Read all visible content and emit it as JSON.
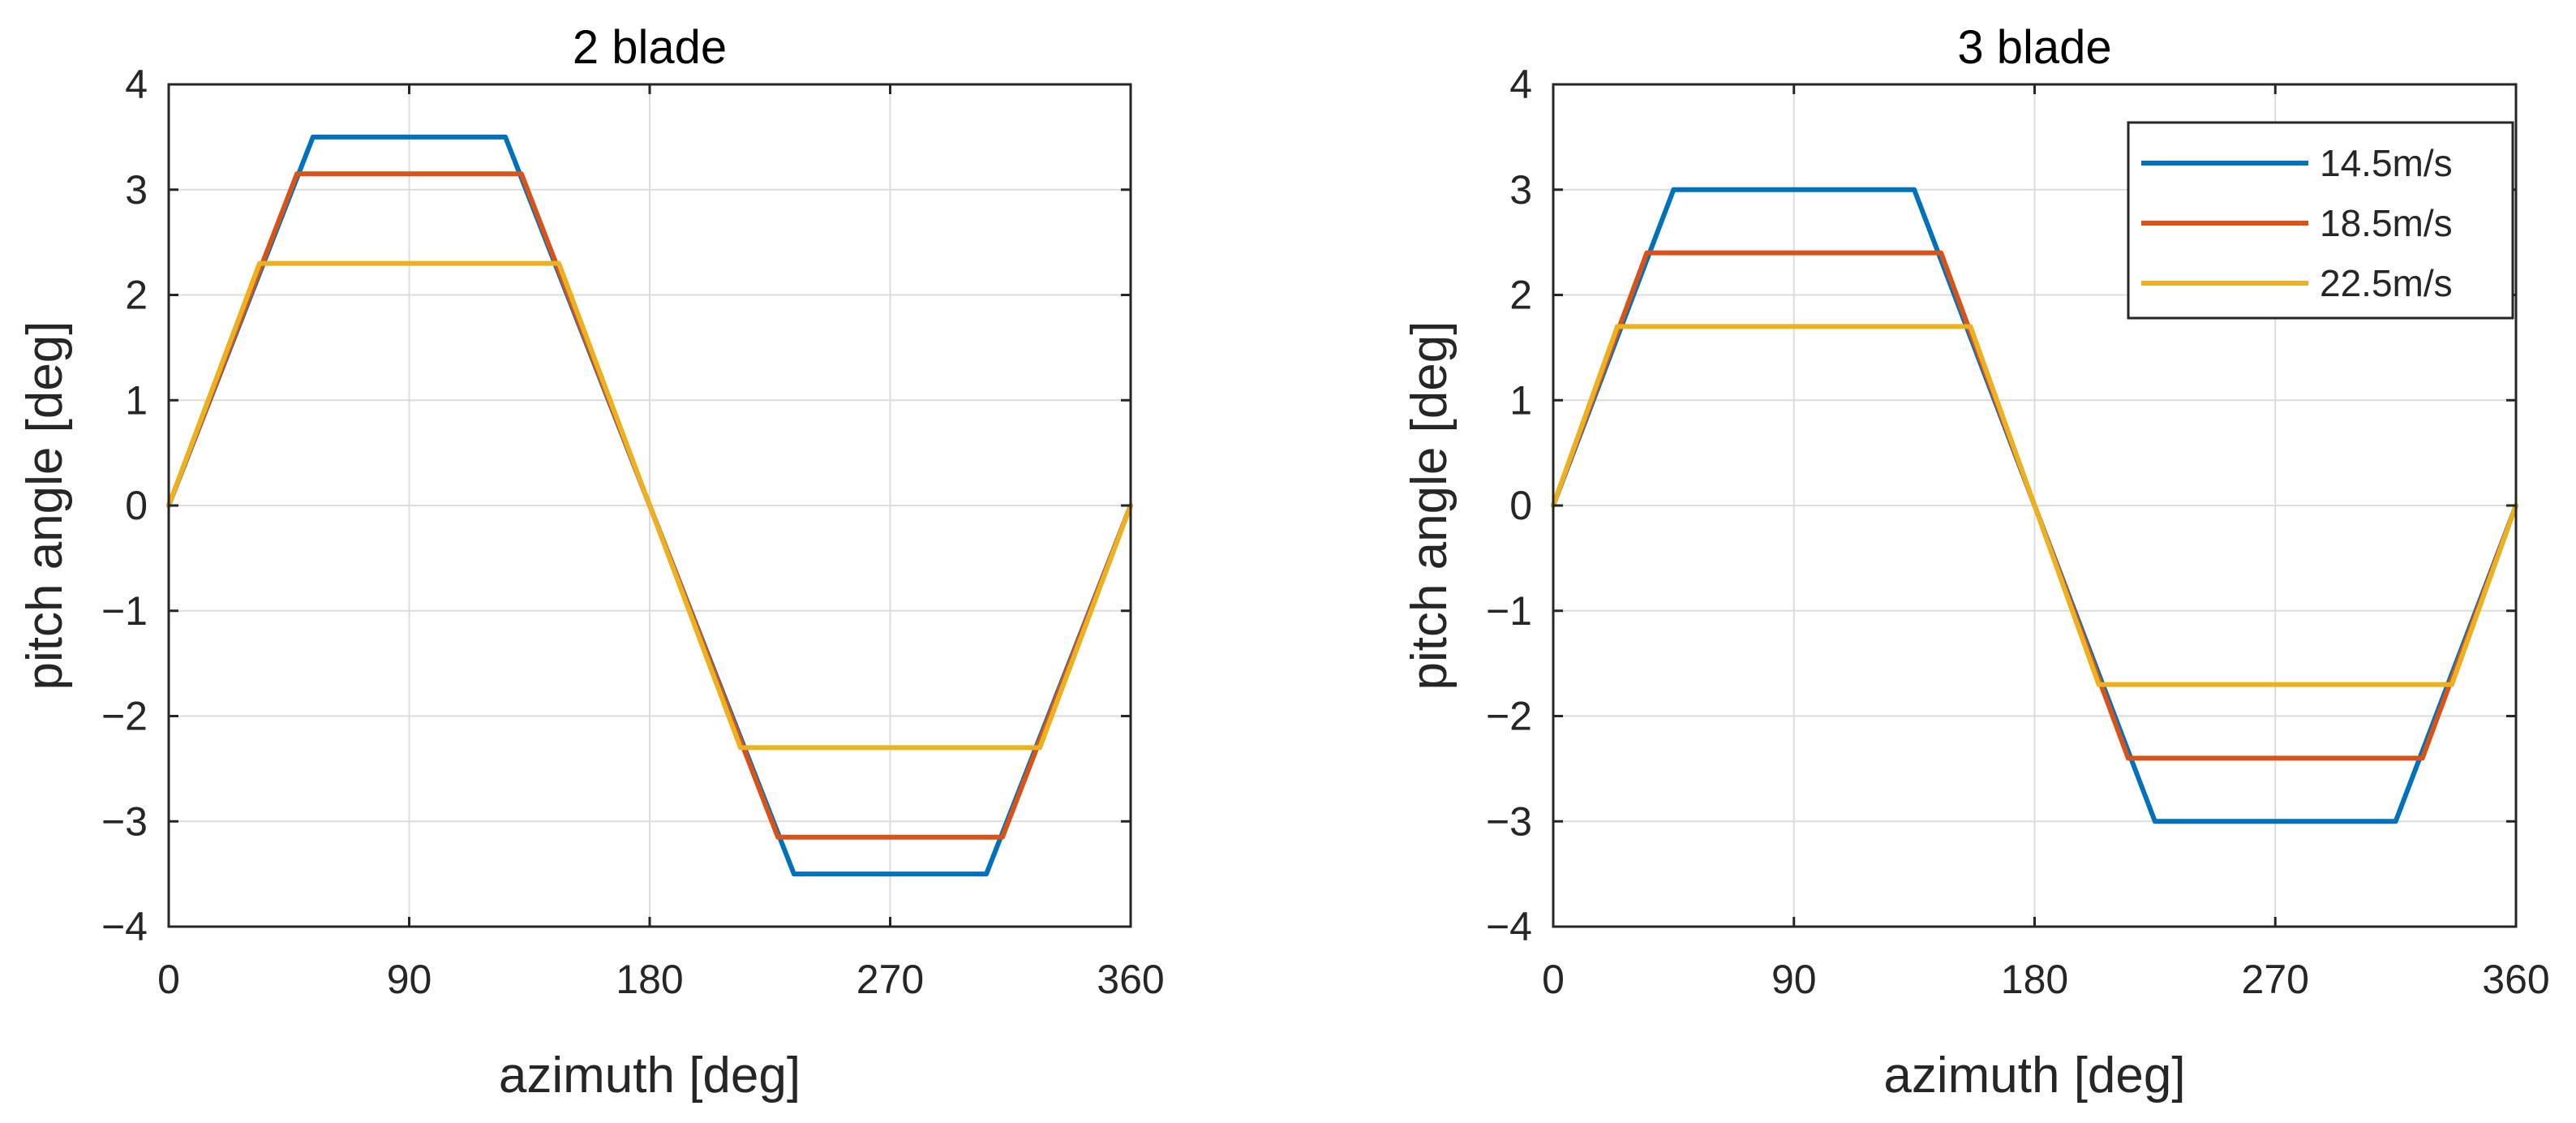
{
  "chart_data": [
    {
      "type": "line",
      "title": "2 blade",
      "xlabel": "azimuth [deg]",
      "ylabel": "pitch angle [deg]",
      "xlim": [
        0,
        360
      ],
      "ylim": [
        -4,
        4
      ],
      "xticks": [
        0,
        90,
        180,
        270,
        360
      ],
      "xtick_labels": [
        "0",
        "90",
        "180",
        "270",
        "360"
      ],
      "yticks": [
        4,
        3,
        2,
        1,
        0,
        -1,
        -2,
        -3,
        -4
      ],
      "ytick_labels": [
        "4",
        "3",
        "2",
        "1",
        "0",
        "−1",
        "−2",
        "−3",
        "−4"
      ],
      "grid": true,
      "series": [
        {
          "name": "14.5m/s",
          "color": "#0072BD",
          "x": [
            0,
            54,
            126,
            180,
            234,
            306,
            360
          ],
          "y": [
            0,
            3.5,
            3.5,
            0,
            -3.5,
            -3.5,
            0
          ]
        },
        {
          "name": "18.5m/s",
          "color": "#D95319",
          "x": [
            0,
            48,
            132,
            180,
            228,
            312,
            360
          ],
          "y": [
            0,
            3.15,
            3.15,
            0,
            -3.15,
            -3.15,
            0
          ]
        },
        {
          "name": "22.5m/s",
          "color": "#EDB120",
          "x": [
            0,
            34,
            146,
            180,
            214,
            326,
            360
          ],
          "y": [
            0,
            2.3,
            2.3,
            0,
            -2.3,
            -2.3,
            0
          ]
        }
      ]
    },
    {
      "type": "line",
      "title": "3 blade",
      "xlabel": "azimuth [deg]",
      "ylabel": "pitch angle [deg]",
      "xlim": [
        0,
        360
      ],
      "ylim": [
        -4,
        4
      ],
      "xticks": [
        0,
        90,
        180,
        270,
        360
      ],
      "xtick_labels": [
        "0",
        "90",
        "180",
        "270",
        "360"
      ],
      "yticks": [
        4,
        3,
        2,
        1,
        0,
        -1,
        -2,
        -3,
        -4
      ],
      "ytick_labels": [
        "4",
        "3",
        "2",
        "1",
        "0",
        "−1",
        "−2",
        "−3",
        "−4"
      ],
      "grid": true,
      "legend": {
        "placement": "top-right",
        "entries": [
          "14.5m/s",
          "18.5m/s",
          "22.5m/s"
        ]
      },
      "series": [
        {
          "name": "14.5m/s",
          "color": "#0072BD",
          "x": [
            0,
            45,
            135,
            180,
            225,
            315,
            360
          ],
          "y": [
            0,
            3.0,
            3.0,
            0,
            -3.0,
            -3.0,
            0
          ]
        },
        {
          "name": "18.5m/s",
          "color": "#D95319",
          "x": [
            0,
            35,
            145,
            180,
            215,
            325,
            360
          ],
          "y": [
            0,
            2.4,
            2.4,
            0,
            -2.4,
            -2.4,
            0
          ]
        },
        {
          "name": "22.5m/s",
          "color": "#EDB120",
          "x": [
            0,
            24,
            156,
            180,
            204,
            336,
            360
          ],
          "y": [
            0,
            1.7,
            1.7,
            0,
            -1.7,
            -1.7,
            0
          ]
        }
      ]
    }
  ]
}
